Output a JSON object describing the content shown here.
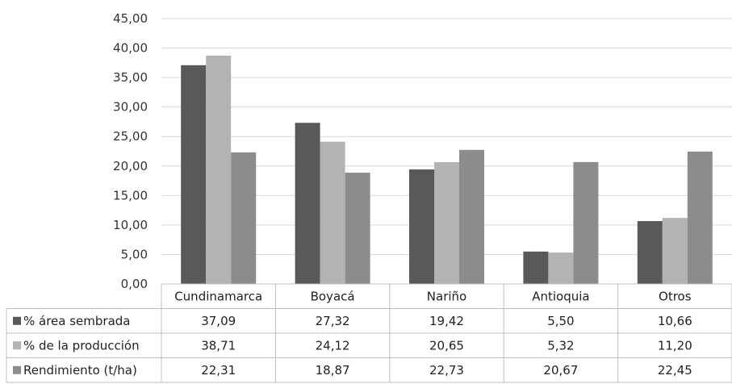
{
  "chart_data": {
    "type": "bar",
    "title": "",
    "xlabel": "",
    "ylabel": "",
    "ylim": [
      0,
      45
    ],
    "yticks": [
      "0,00",
      "5,00",
      "10,00",
      "15,00",
      "20,00",
      "25,00",
      "30,00",
      "35,00",
      "40,00",
      "45,00"
    ],
    "ytick_values": [
      0,
      5,
      10,
      15,
      20,
      25,
      30,
      35,
      40,
      45
    ],
    "grid": true,
    "legend": "data-table",
    "categories": [
      "Cundinamarca",
      "Boyacá",
      "Nariño",
      "Antioquia",
      "Otros"
    ],
    "series": [
      {
        "name": "% área sembrada",
        "color": "#595959",
        "values": [
          37.09,
          27.32,
          19.42,
          5.5,
          10.66
        ],
        "labels": [
          "37,09",
          "27,32",
          "19,42",
          "5,50",
          "10,66"
        ]
      },
      {
        "name": "% de la producción",
        "color": "#b3b3b3",
        "values": [
          38.71,
          24.12,
          20.65,
          5.32,
          11.2
        ],
        "labels": [
          "38,71",
          "24,12",
          "20,65",
          "5,32",
          "11,20"
        ]
      },
      {
        "name": "Rendimiento (t/ha)",
        "color": "#8c8c8c",
        "values": [
          22.31,
          18.87,
          22.73,
          20.67,
          22.45
        ],
        "labels": [
          "22,31",
          "18,87",
          "22,73",
          "20,67",
          "22,45"
        ]
      }
    ]
  }
}
